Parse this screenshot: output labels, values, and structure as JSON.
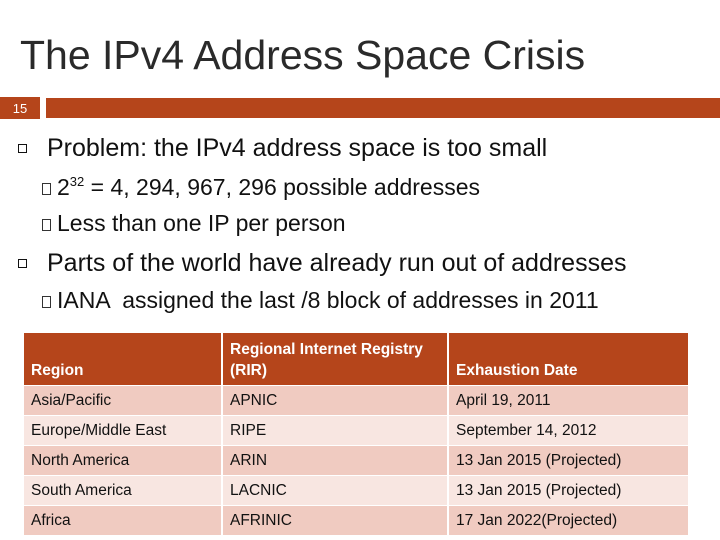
{
  "slide": {
    "title": "The IPv4 Address Space Crisis",
    "number": "15"
  },
  "bullets": [
    {
      "text": "Problem: the IPv4 address space is too small",
      "sub": [
        {
          "base": "2",
          "sup": "32",
          "rest": " = 4, 294, 967, 296 possible addresses"
        },
        {
          "text": "Less than one IP per person"
        }
      ]
    },
    {
      "text": "Parts of the world have already run out of addresses",
      "sub": [
        {
          "text": "IANA  assigned the last /8 block of addresses in 2011"
        }
      ]
    }
  ],
  "table": {
    "headers": [
      "Region",
      "Regional  Internet Registry (RIR)",
      "Exhaustion Date"
    ],
    "rows": [
      [
        "Asia/Pacific",
        "APNIC",
        "April 19, 2011"
      ],
      [
        "Europe/Middle East",
        "RIPE",
        "September 14, 2012"
      ],
      [
        "North America",
        "ARIN",
        "13 Jan 2015 (Projected)"
      ],
      [
        "South America",
        "LACNIC",
        "13 Jan 2015 (Projected)"
      ],
      [
        "Africa",
        "AFRINIC",
        "17 Jan 2022(Projected)"
      ]
    ]
  },
  "colors": {
    "accent": "#b5451b",
    "row_dark": "#f0cbc1",
    "row_light": "#f8e6e1"
  }
}
